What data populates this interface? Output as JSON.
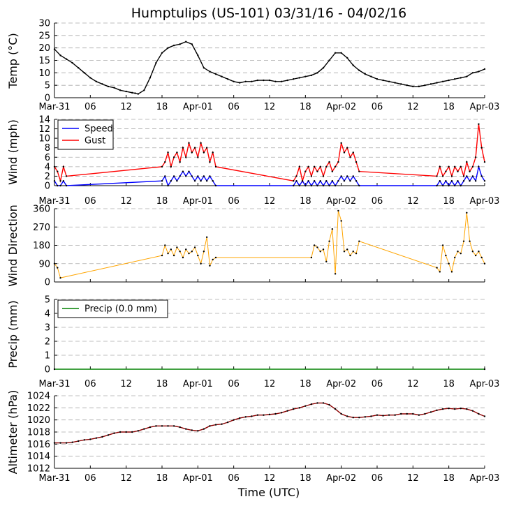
{
  "title": "Humptulips (US-101) 03/31/16 - 04/02/16",
  "xlabel": "Time (UTC)",
  "x_ticks": [
    "Mar-31",
    "06",
    "12",
    "18",
    "Apr-01",
    "06",
    "12",
    "18",
    "Apr-02",
    "06",
    "12",
    "18",
    "Apr-03"
  ],
  "chart_data": [
    {
      "type": "line",
      "ylabel": "Temp ($^\\circ$C)",
      "ylabel_display": "Temp (°C)",
      "ylim": [
        0,
        30
      ],
      "yticks": [
        "0",
        "5",
        "10",
        "15",
        "20",
        "25",
        "30"
      ],
      "grid": true,
      "color": "#000000",
      "series": [
        {
          "hours": [
            0,
            1,
            2,
            3,
            4,
            5,
            6,
            7,
            8,
            9,
            10,
            11,
            12,
            13,
            13.5,
            14,
            15,
            16,
            17,
            18,
            19,
            20,
            21,
            22,
            23,
            24,
            25,
            26,
            27,
            28,
            29,
            30,
            31,
            32,
            33,
            34,
            35,
            36,
            37,
            38,
            39,
            40,
            41,
            42,
            43,
            44,
            45,
            46,
            47,
            48,
            49,
            50,
            51,
            52,
            53,
            54,
            55,
            56,
            57,
            58,
            59,
            60,
            61,
            62,
            63,
            64,
            65,
            66,
            67,
            68,
            69,
            70,
            71,
            72
          ],
          "values": [
            19.5,
            17,
            15.5,
            14,
            12,
            10,
            8,
            6.5,
            5.5,
            4.5,
            4,
            3,
            2.5,
            2,
            1.8,
            1.5,
            3,
            8,
            14,
            18,
            20,
            21,
            21.5,
            22.5,
            21.5,
            17,
            12,
            10.5,
            9.5,
            8.5,
            7.5,
            6.5,
            6,
            6.5,
            6.5,
            7,
            7,
            7,
            6.5,
            6.5,
            7,
            7.5,
            8,
            8.5,
            9,
            10,
            12,
            15,
            18,
            18,
            16,
            13,
            11,
            9.5,
            8.5,
            7.5,
            7,
            6.5,
            6,
            5.5,
            5,
            4.5,
            4.5,
            5,
            5.5,
            6,
            6.5,
            7,
            7.5,
            8,
            8.5,
            10,
            10.5,
            11.5
          ]
        }
      ]
    },
    {
      "type": "line",
      "ylabel": "Wind (mph)",
      "ylim": [
        0,
        14
      ],
      "yticks": [
        "0",
        "2",
        "4",
        "6",
        "8",
        "10",
        "12",
        "14"
      ],
      "grid": true,
      "legend": "top-left",
      "series": [
        {
          "name": "Speed",
          "color": "#0000ff",
          "hours": [
            0,
            0.5,
            1,
            1.5,
            2,
            18,
            18.5,
            19,
            19.5,
            20,
            20.5,
            21,
            21.5,
            22,
            22.5,
            23,
            23.5,
            24,
            24.5,
            25,
            25.5,
            26,
            26.5,
            27,
            40,
            40.5,
            41,
            41.5,
            42,
            42.5,
            43,
            43.5,
            44,
            44.5,
            45,
            45.5,
            46,
            46.5,
            47,
            47.5,
            48,
            48.5,
            49,
            49.5,
            50,
            50.5,
            51,
            64,
            64.5,
            65,
            65.5,
            66,
            66.5,
            67,
            67.5,
            68,
            68.5,
            69,
            69.5,
            70,
            70.5,
            71,
            71.5,
            72
          ],
          "values": [
            1,
            0,
            0,
            1,
            0,
            1,
            2,
            0,
            1,
            2,
            1,
            2,
            3,
            2,
            3,
            2,
            1,
            2,
            1,
            2,
            1,
            2,
            1,
            0,
            0,
            1,
            0,
            1,
            0,
            1,
            0,
            1,
            0,
            1,
            0,
            1,
            0,
            1,
            0,
            1,
            2,
            1,
            2,
            1,
            2,
            1,
            0,
            0,
            1,
            0,
            1,
            0,
            1,
            0,
            1,
            0,
            1,
            2,
            1,
            2,
            1,
            4,
            2,
            1
          ]
        },
        {
          "name": "Gust",
          "color": "#ff0000",
          "hours": [
            0,
            0.5,
            1,
            1.5,
            2,
            18,
            18.5,
            19,
            19.5,
            20,
            20.5,
            21,
            21.5,
            22,
            22.5,
            23,
            23.5,
            24,
            24.5,
            25,
            25.5,
            26,
            26.5,
            27,
            40,
            40.5,
            41,
            41.5,
            42,
            42.5,
            43,
            43.5,
            44,
            44.5,
            45,
            45.5,
            46,
            46.5,
            47,
            47.5,
            48,
            48.5,
            49,
            49.5,
            50,
            50.5,
            51,
            64,
            64.5,
            65,
            65.5,
            66,
            66.5,
            67,
            67.5,
            68,
            68.5,
            69,
            69.5,
            70,
            70.5,
            71,
            71.5,
            72
          ],
          "values": [
            4,
            3,
            1,
            4,
            2,
            4,
            5,
            7,
            4,
            6,
            7,
            5,
            8,
            6,
            9,
            7,
            8,
            6,
            9,
            7,
            8,
            5,
            7,
            4,
            1,
            2,
            4,
            1,
            3,
            4,
            2,
            4,
            3,
            4,
            2,
            4,
            5,
            3,
            4,
            5,
            9,
            7,
            8,
            6,
            7,
            5,
            3,
            2,
            4,
            2,
            3,
            4,
            2,
            4,
            3,
            4,
            2,
            5,
            3,
            4,
            6,
            13,
            8,
            5
          ]
        }
      ]
    },
    {
      "type": "scatter",
      "ylabel": "Wind Direction",
      "ylim": [
        0,
        360
      ],
      "yticks": [
        "0",
        "90",
        "180",
        "270",
        "360"
      ],
      "grid": true,
      "color": "#ffa500",
      "series": [
        {
          "hours": [
            0,
            0.5,
            1,
            18,
            18.5,
            19,
            19.5,
            20,
            20.5,
            21,
            21.5,
            22,
            22.5,
            23,
            23.5,
            24,
            24.5,
            25,
            25.5,
            26,
            26.5,
            27,
            43,
            43.5,
            44,
            44.5,
            45,
            45.5,
            46,
            46.5,
            47,
            47.5,
            48,
            48.5,
            49,
            49.5,
            50,
            50.5,
            51,
            64,
            64.5,
            65,
            65.5,
            66,
            66.5,
            67,
            67.5,
            68,
            68.5,
            69,
            69.5,
            70,
            70.5,
            71,
            71.5,
            72
          ],
          "values": [
            90,
            70,
            20,
            130,
            180,
            140,
            160,
            130,
            170,
            150,
            120,
            160,
            140,
            150,
            170,
            130,
            90,
            150,
            220,
            80,
            110,
            120,
            120,
            180,
            170,
            150,
            160,
            100,
            200,
            260,
            40,
            350,
            300,
            150,
            160,
            130,
            150,
            140,
            200,
            70,
            50,
            180,
            130,
            90,
            50,
            120,
            150,
            140,
            200,
            340,
            200,
            150,
            130,
            150,
            120,
            90
          ]
        }
      ]
    },
    {
      "type": "line",
      "ylabel": "Precip (mm)",
      "ylim": [
        0,
        5
      ],
      "yticks": [
        "0",
        "1",
        "2",
        "3",
        "4",
        "5"
      ],
      "grid": true,
      "legend": "top-left",
      "series": [
        {
          "name": "Precip (0.0 mm)",
          "color": "#008000",
          "hours": [
            0,
            72
          ],
          "values": [
            0,
            0
          ]
        }
      ]
    },
    {
      "type": "line",
      "ylabel": "Altimeter (hPa)",
      "ylim": [
        1012,
        1024
      ],
      "yticks": [
        "1012",
        "1014",
        "1016",
        "1018",
        "1020",
        "1022",
        "1024"
      ],
      "grid": true,
      "color": "#8b0000",
      "series": [
        {
          "hours": [
            0,
            1,
            2,
            3,
            4,
            5,
            6,
            7,
            8,
            9,
            10,
            11,
            12,
            13,
            14,
            15,
            16,
            17,
            18,
            19,
            20,
            21,
            22,
            23,
            24,
            25,
            26,
            27,
            28,
            29,
            30,
            31,
            32,
            33,
            34,
            35,
            36,
            37,
            38,
            39,
            40,
            41,
            42,
            43,
            44,
            45,
            46,
            47,
            48,
            49,
            50,
            51,
            52,
            53,
            54,
            55,
            56,
            57,
            58,
            59,
            60,
            61,
            62,
            63,
            64,
            65,
            66,
            67,
            68,
            69,
            70,
            71,
            72
          ],
          "values": [
            1016.2,
            1016.2,
            1016.2,
            1016.3,
            1016.5,
            1016.7,
            1016.8,
            1017,
            1017.2,
            1017.5,
            1017.8,
            1018,
            1018,
            1018,
            1018.2,
            1018.5,
            1018.8,
            1019,
            1019,
            1019,
            1019,
            1018.8,
            1018.5,
            1018.3,
            1018.2,
            1018.5,
            1019,
            1019.2,
            1019.3,
            1019.6,
            1020,
            1020.3,
            1020.5,
            1020.6,
            1020.8,
            1020.8,
            1020.9,
            1021,
            1021.2,
            1021.5,
            1021.8,
            1022,
            1022.3,
            1022.6,
            1022.8,
            1022.8,
            1022.5,
            1021.8,
            1021,
            1020.6,
            1020.4,
            1020.4,
            1020.5,
            1020.6,
            1020.8,
            1020.7,
            1020.8,
            1020.8,
            1021,
            1021,
            1021,
            1020.8,
            1021,
            1021.3,
            1021.6,
            1021.8,
            1021.9,
            1021.8,
            1021.9,
            1021.8,
            1021.5,
            1021,
            1020.6
          ]
        }
      ]
    }
  ]
}
